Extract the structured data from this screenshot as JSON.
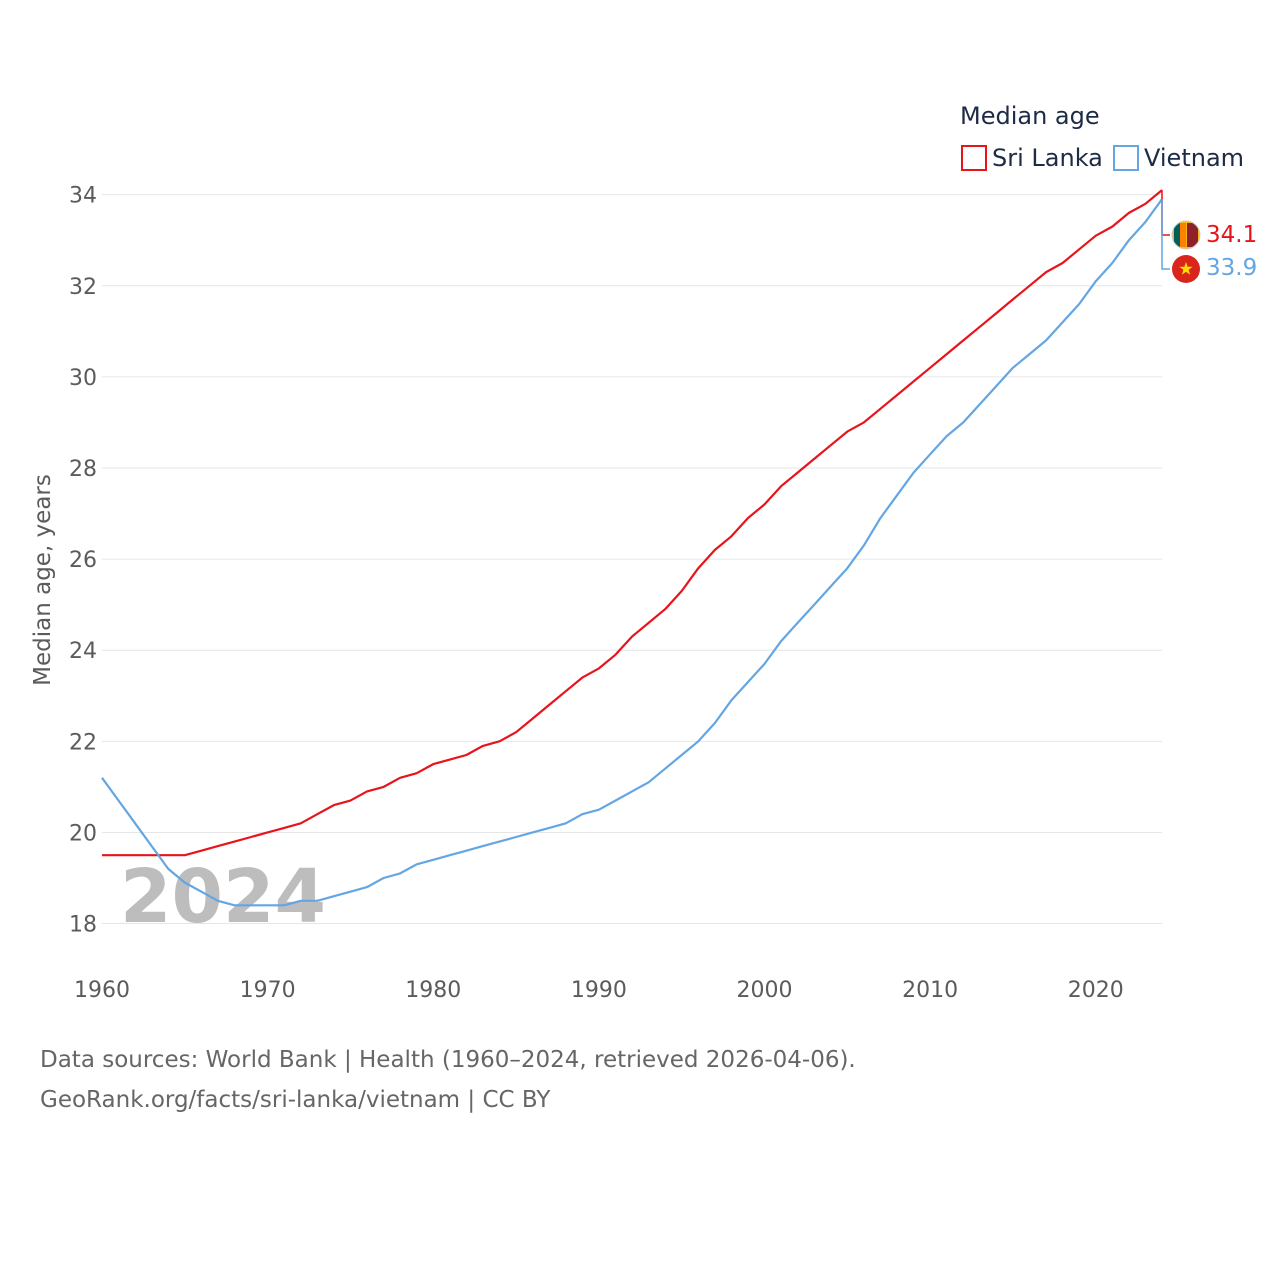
{
  "chart_data": {
    "type": "line",
    "title": "",
    "ylabel": "Median age, years",
    "xlabel": "",
    "xlim": [
      1960,
      2024
    ],
    "ylim": [
      17.2,
      35.2
    ],
    "x_ticks": [
      1960,
      1970,
      1980,
      1990,
      2000,
      2010,
      2020
    ],
    "y_ticks": [
      18,
      20,
      22,
      24,
      26,
      28,
      30,
      32,
      34
    ],
    "grid": true,
    "legend": {
      "title": "Median age",
      "position": "top-right"
    },
    "current_year_label": "2024",
    "x": [
      1960,
      1961,
      1962,
      1963,
      1964,
      1965,
      1966,
      1967,
      1968,
      1969,
      1970,
      1971,
      1972,
      1973,
      1974,
      1975,
      1976,
      1977,
      1978,
      1979,
      1980,
      1981,
      1982,
      1983,
      1984,
      1985,
      1986,
      1987,
      1988,
      1989,
      1990,
      1991,
      1992,
      1993,
      1994,
      1995,
      1996,
      1997,
      1998,
      1999,
      2000,
      2001,
      2002,
      2003,
      2004,
      2005,
      2006,
      2007,
      2008,
      2009,
      2010,
      2011,
      2012,
      2013,
      2014,
      2015,
      2016,
      2017,
      2018,
      2019,
      2020,
      2021,
      2022,
      2023,
      2024
    ],
    "series": [
      {
        "name": "Sri Lanka",
        "color": "#e8141c",
        "end_label": "34.1",
        "flag": "sri-lanka-flag-icon",
        "values": [
          19.5,
          19.5,
          19.5,
          19.5,
          19.5,
          19.5,
          19.6,
          19.7,
          19.8,
          19.9,
          20.0,
          20.1,
          20.2,
          20.4,
          20.6,
          20.7,
          20.9,
          21.0,
          21.2,
          21.3,
          21.5,
          21.6,
          21.7,
          21.9,
          22.0,
          22.2,
          22.5,
          22.8,
          23.1,
          23.4,
          23.6,
          23.9,
          24.3,
          24.6,
          24.9,
          25.3,
          25.8,
          26.2,
          26.5,
          26.9,
          27.2,
          27.6,
          27.9,
          28.2,
          28.5,
          28.8,
          29.0,
          29.3,
          29.6,
          29.9,
          30.2,
          30.5,
          30.8,
          31.1,
          31.4,
          31.7,
          32.0,
          32.3,
          32.5,
          32.8,
          33.1,
          33.3,
          33.6,
          33.8,
          34.1
        ]
      },
      {
        "name": "Vietnam",
        "color": "#63a6e3",
        "end_label": "33.9",
        "flag": "vietnam-flag-icon",
        "values": [
          21.2,
          20.7,
          20.2,
          19.7,
          19.2,
          18.9,
          18.7,
          18.5,
          18.4,
          18.4,
          18.4,
          18.4,
          18.5,
          18.5,
          18.6,
          18.7,
          18.8,
          19.0,
          19.1,
          19.3,
          19.4,
          19.5,
          19.6,
          19.7,
          19.8,
          19.9,
          20.0,
          20.1,
          20.2,
          20.4,
          20.5,
          20.7,
          20.9,
          21.1,
          21.4,
          21.7,
          22.0,
          22.4,
          22.9,
          23.3,
          23.7,
          24.2,
          24.6,
          25.0,
          25.4,
          25.8,
          26.3,
          26.9,
          27.4,
          27.9,
          28.3,
          28.7,
          29.0,
          29.4,
          29.8,
          30.2,
          30.5,
          30.8,
          31.2,
          31.6,
          32.1,
          32.5,
          33.0,
          33.4,
          33.9
        ]
      }
    ]
  },
  "footer": {
    "sources": "Data sources: World Bank | Health (1960–2024, retrieved 2026-04-06).",
    "credit": "GeoRank.org/facts/sri-lanka/vietnam | CC BY"
  }
}
